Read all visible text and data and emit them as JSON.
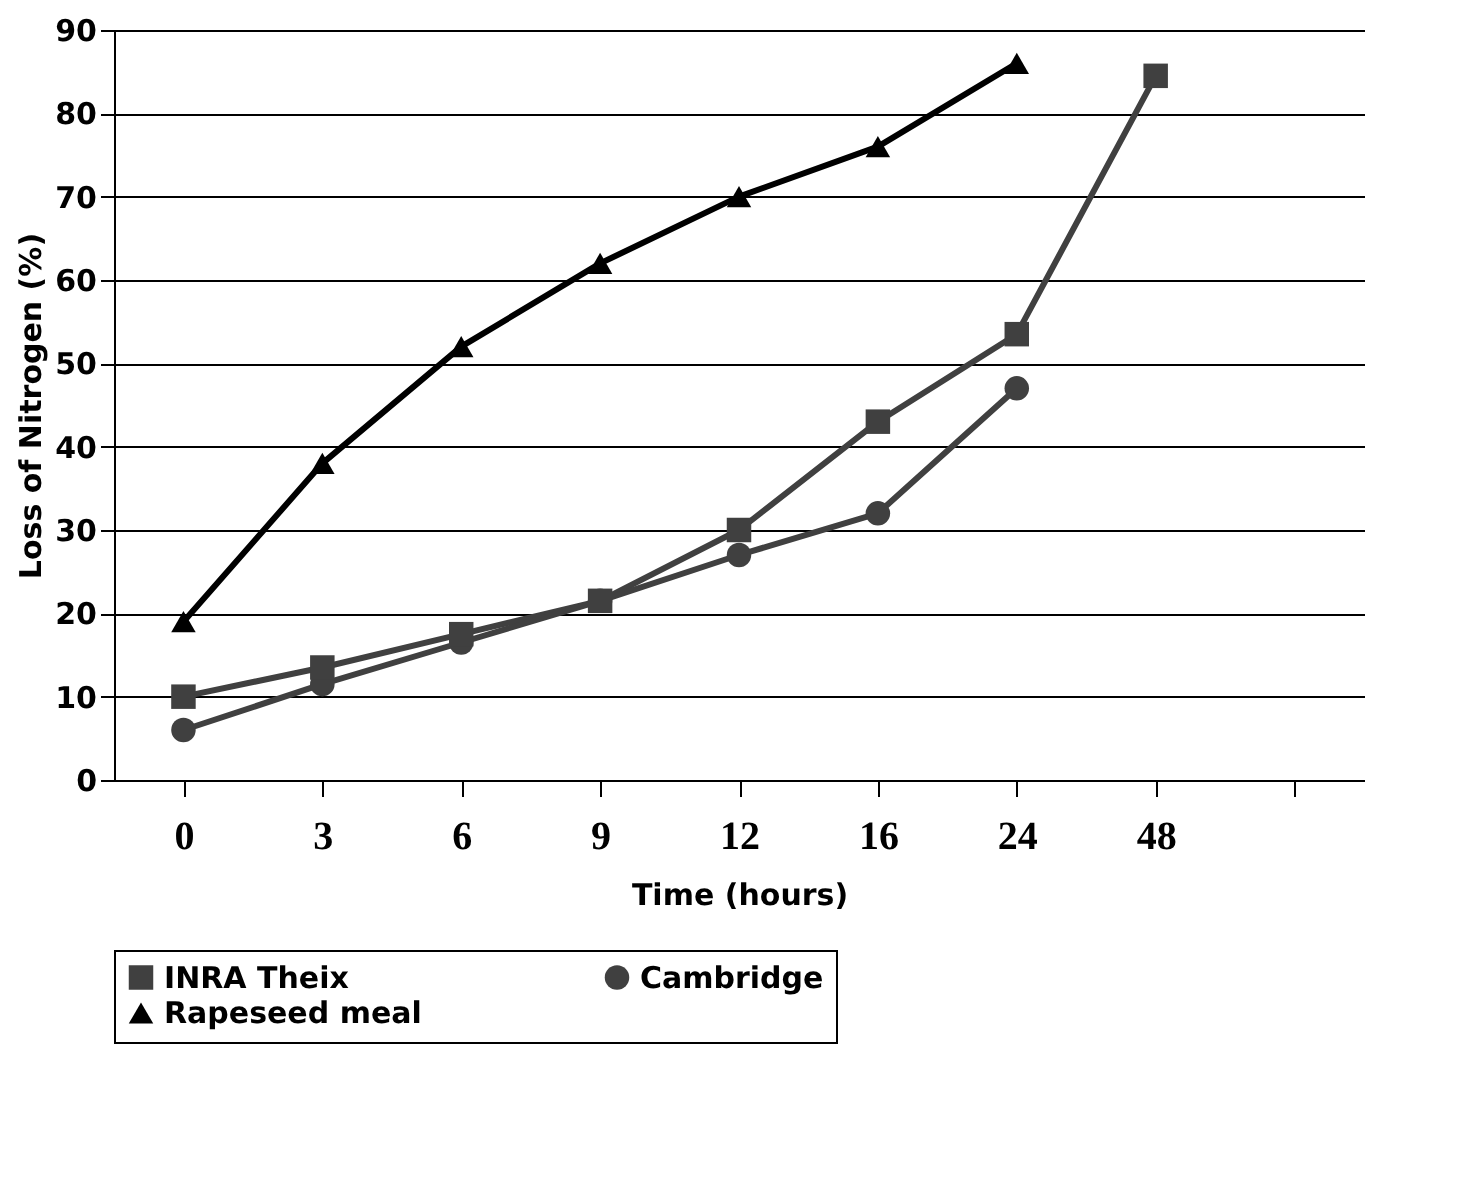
{
  "chart_data": {
    "type": "line",
    "xlabel": "Time (hours)",
    "ylabel": "Loss of Nitrogen (%)",
    "categories": [
      "0",
      "3",
      "6",
      "9",
      "12",
      "16",
      "24",
      "48",
      null
    ],
    "series": [
      {
        "name": "INRA Theix",
        "color": "#404040",
        "marker": "square",
        "values": [
          10,
          13.5,
          17.5,
          21.5,
          30,
          43,
          53.5,
          84.5,
          null
        ]
      },
      {
        "name": "Cambridge",
        "color": "#404040",
        "marker": "circle",
        "values": [
          6,
          11.5,
          16.5,
          21.5,
          27,
          32,
          47,
          null,
          null
        ]
      },
      {
        "name": "Rapeseed meal",
        "color": "#000000",
        "marker": "triangle",
        "values": [
          19,
          38,
          52,
          62,
          70,
          76,
          86,
          null,
          null
        ]
      }
    ],
    "ylim": [
      0,
      90
    ],
    "yticks": [
      0,
      10,
      20,
      30,
      40,
      50,
      60,
      70,
      80,
      90
    ],
    "grid": "y",
    "legend": "bottom",
    "line_style": "solid"
  }
}
